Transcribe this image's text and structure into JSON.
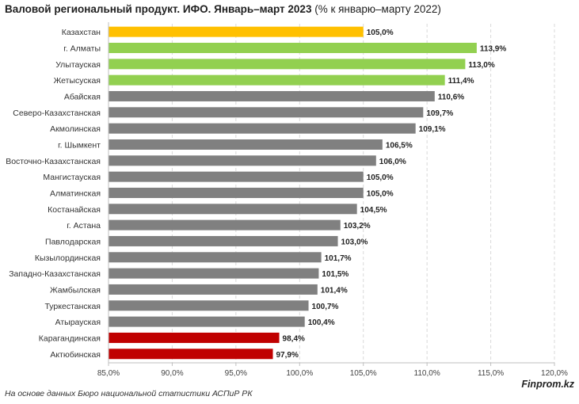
{
  "chart_data": {
    "type": "bar",
    "orientation": "horizontal",
    "title": "Валовой региональный продукт. ИФО. Январь–март 2023",
    "subtitle": "(% к январю–марту 2022)",
    "categories": [
      "Казахстан",
      "г. Алматы",
      "Улытауская",
      "Жетысуская",
      "Абайская",
      "Северо-Казахстанская",
      "Акмолинская",
      "г. Шымкент",
      "Восточно-Казахстанская",
      "Мангистауская",
      "Алматинская",
      "Костанайская",
      "г. Астана",
      "Павлодарская",
      "Кызылординская",
      "Западно-Казахстанская",
      "Жамбылская",
      "Туркестанская",
      "Атырауская",
      "Карагандинская",
      "Актюбинская"
    ],
    "values": [
      105.0,
      113.9,
      113.0,
      111.4,
      110.6,
      109.7,
      109.1,
      106.5,
      106.0,
      105.0,
      105.0,
      104.5,
      103.2,
      103.0,
      101.7,
      101.5,
      101.4,
      100.7,
      100.4,
      98.4,
      97.9
    ],
    "value_labels": [
      "105,0%",
      "113,9%",
      "113,0%",
      "111,4%",
      "110,6%",
      "109,7%",
      "109,1%",
      "106,5%",
      "106,0%",
      "105,0%",
      "105,0%",
      "104,5%",
      "103,2%",
      "103,0%",
      "101,7%",
      "101,5%",
      "101,4%",
      "100,7%",
      "100,4%",
      "98,4%",
      "97,9%"
    ],
    "bar_colors": [
      "#ffc000",
      "#92d050",
      "#92d050",
      "#92d050",
      "#808080",
      "#808080",
      "#808080",
      "#808080",
      "#808080",
      "#808080",
      "#808080",
      "#808080",
      "#808080",
      "#808080",
      "#808080",
      "#808080",
      "#808080",
      "#808080",
      "#808080",
      "#c00000",
      "#c00000"
    ],
    "xlim": [
      85,
      120
    ],
    "x_ticks": [
      85,
      90,
      95,
      100,
      105,
      110,
      115,
      120
    ],
    "x_tick_labels": [
      "85,0%",
      "90,0%",
      "95,0%",
      "100,0%",
      "105,0%",
      "110,0%",
      "115,0%",
      "120,0%"
    ],
    "grid": "vertical dashed",
    "xlabel": "",
    "ylabel": ""
  },
  "footer": {
    "source": "На основе данных Бюро национальной статистики АСПиР РК",
    "brand": "Finprom.kz"
  }
}
